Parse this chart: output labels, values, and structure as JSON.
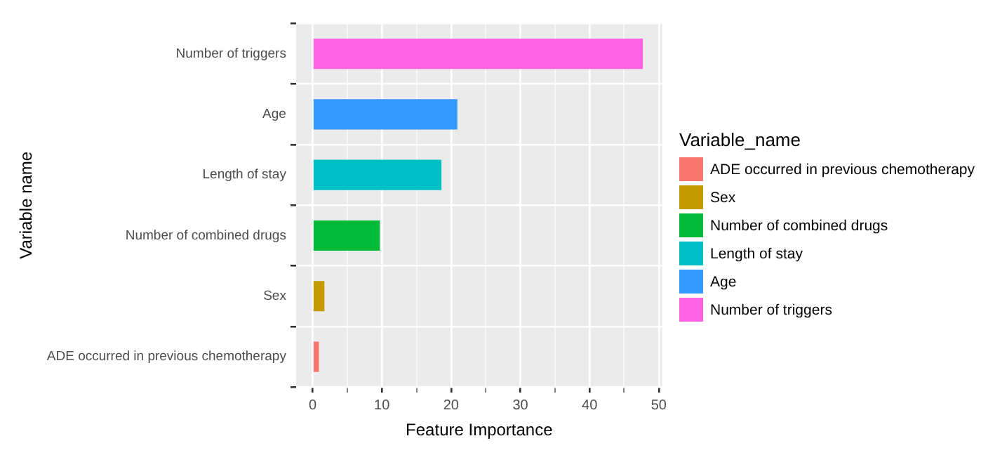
{
  "chart_data": {
    "type": "bar",
    "orientation": "horizontal",
    "xlabel": "Feature Importance",
    "ylabel": "Variable name",
    "legend_title": "Variable_name",
    "categories": [
      "Number of triggers",
      "Age",
      "Length of stay",
      "Number of combined drugs",
      "Sex",
      "ADE occurred in previous chemotherapy"
    ],
    "series": [
      {
        "name": "ADE occurred in previous chemotherapy",
        "color": "#f8766d",
        "values": [
          null,
          null,
          null,
          null,
          null,
          0.9
        ]
      },
      {
        "name": "Sex",
        "color": "#c49a00",
        "values": [
          null,
          null,
          null,
          null,
          1.7,
          null
        ]
      },
      {
        "name": "Number of combined drugs",
        "color": "#00ba38",
        "values": [
          null,
          null,
          null,
          9.7,
          null,
          null
        ]
      },
      {
        "name": "Length of stay",
        "color": "#00bfc4",
        "values": [
          null,
          null,
          18.6,
          null,
          null,
          null
        ]
      },
      {
        "name": "Age",
        "color": "#3399ff",
        "values": [
          null,
          20.9,
          null,
          null,
          null,
          null
        ]
      },
      {
        "name": "Number of triggers",
        "color": "#ff61e3",
        "values": [
          47.7,
          null,
          null,
          null,
          null,
          null
        ]
      }
    ],
    "xlim": [
      -2.4,
      50.5
    ],
    "xticks": [
      0,
      {
        "value": 5,
        "label": null
      },
      10,
      {
        "value": 15,
        "label": null
      },
      20,
      {
        "value": 25,
        "label": null
      },
      30,
      {
        "value": 35,
        "label": null
      },
      40,
      {
        "value": 45,
        "label": null
      },
      50
    ],
    "grid": true,
    "legend": "right"
  }
}
